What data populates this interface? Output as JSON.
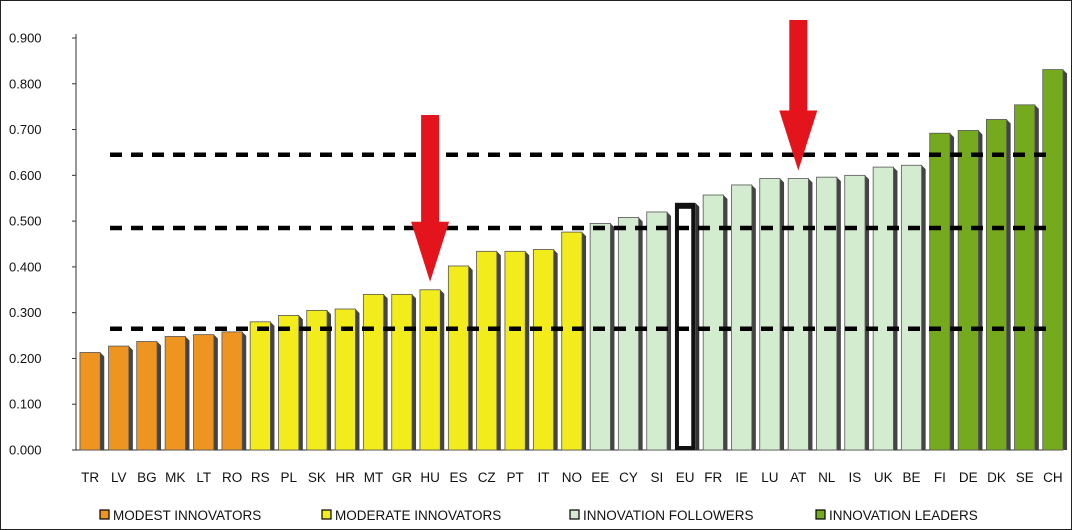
{
  "chart_data": {
    "type": "bar",
    "ylim": [
      0,
      0.9
    ],
    "yticks": [
      "0.000",
      "0.100",
      "0.200",
      "0.300",
      "0.400",
      "0.500",
      "0.600",
      "0.700",
      "0.800",
      "0.900"
    ],
    "categories": [
      "TR",
      "LV",
      "BG",
      "MK",
      "LT",
      "RO",
      "RS",
      "PL",
      "SK",
      "HR",
      "MT",
      "GR",
      "HU",
      "ES",
      "CZ",
      "PT",
      "IT",
      "NO",
      "EE",
      "CY",
      "SI",
      "EU",
      "FR",
      "IE",
      "LU",
      "AT",
      "NL",
      "IS",
      "UK",
      "BE",
      "FI",
      "DE",
      "DK",
      "SE",
      "CH"
    ],
    "values": [
      0.213,
      0.227,
      0.237,
      0.248,
      0.252,
      0.258,
      0.28,
      0.294,
      0.305,
      0.308,
      0.34,
      0.34,
      0.35,
      0.402,
      0.434,
      0.434,
      0.438,
      0.476,
      0.495,
      0.508,
      0.52,
      0.54,
      0.557,
      0.579,
      0.593,
      0.593,
      0.596,
      0.6,
      0.618,
      0.622,
      0.692,
      0.698,
      0.722,
      0.754,
      0.831
    ],
    "groups": [
      "modest",
      "modest",
      "modest",
      "modest",
      "modest",
      "modest",
      "moderate",
      "moderate",
      "moderate",
      "moderate",
      "moderate",
      "moderate",
      "moderate",
      "moderate",
      "moderate",
      "moderate",
      "moderate",
      "moderate",
      "follower",
      "follower",
      "follower",
      "eu",
      "follower",
      "follower",
      "follower",
      "follower",
      "follower",
      "follower",
      "follower",
      "follower",
      "leader",
      "leader",
      "leader",
      "leader",
      "leader"
    ],
    "thresholds": [
      0.265,
      0.485,
      0.645
    ],
    "arrows": [
      "HU",
      "AT"
    ],
    "legend": [
      {
        "key": "modest",
        "label": "MODEST INNOVATORS"
      },
      {
        "key": "moderate",
        "label": "MODERATE INNOVATORS"
      },
      {
        "key": "follower",
        "label": "INNOVATION FOLLOWERS"
      },
      {
        "key": "leader",
        "label": "INNOVATION LEADERS"
      }
    ],
    "legend_position": "bottom",
    "colors": {
      "modest": "#ee9420",
      "moderate": "#f3ec1c",
      "follower": "#d3ebcf",
      "leader": "#75aa1e",
      "eu": "#111111",
      "arrow": "#e3141c"
    }
  }
}
